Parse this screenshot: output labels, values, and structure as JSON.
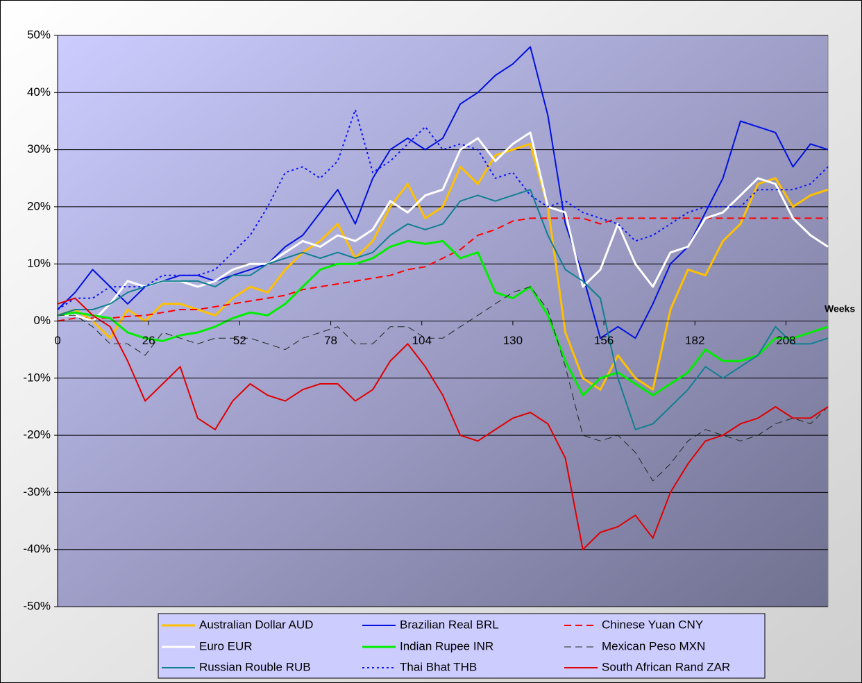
{
  "chart_data": {
    "type": "line",
    "x_label": "Weeks",
    "x": [
      0,
      5,
      10,
      15,
      20,
      25,
      30,
      35,
      40,
      45,
      50,
      55,
      60,
      65,
      70,
      75,
      80,
      85,
      90,
      95,
      100,
      105,
      110,
      115,
      120,
      125,
      130,
      135,
      140,
      145,
      150,
      155,
      160,
      165,
      170,
      175,
      180,
      185,
      190,
      195,
      200,
      205,
      210,
      215,
      220
    ],
    "xlim": [
      0,
      220
    ],
    "xticks": [
      0,
      26,
      52,
      78,
      104,
      130,
      156,
      182,
      208
    ],
    "ylim": [
      -50,
      50
    ],
    "yticks": [
      {
        "value": -50,
        "label": "-50%"
      },
      {
        "value": -40,
        "label": "-40%"
      },
      {
        "value": -30,
        "label": "-30%"
      },
      {
        "value": -20,
        "label": "-20%"
      },
      {
        "value": -10,
        "label": "-10%"
      },
      {
        "value": 0,
        "label": "0%"
      },
      {
        "value": 10,
        "label": "10%"
      },
      {
        "value": 20,
        "label": "20%"
      },
      {
        "value": 30,
        "label": "30%"
      },
      {
        "value": 40,
        "label": "40%"
      },
      {
        "value": 50,
        "label": "50%"
      }
    ],
    "grid": true,
    "legend": "bottom",
    "series": [
      {
        "name": "Australian Dollar AUD",
        "color": "#ffc000",
        "dash": "solid",
        "width": 3,
        "values": [
          1,
          2,
          0,
          -3,
          2,
          0,
          3,
          3,
          2,
          1,
          4,
          6,
          5,
          9,
          12,
          14,
          17,
          11,
          14,
          20,
          24,
          18,
          20,
          27,
          24,
          29,
          30,
          31,
          20,
          -2,
          -10,
          -12,
          -6,
          -10,
          -12,
          2,
          9,
          8,
          14,
          17,
          24,
          25,
          20,
          22,
          23
        ]
      },
      {
        "name": "Brazilian Real BRL",
        "color": "#0010e0",
        "dash": "solid",
        "width": 2,
        "values": [
          2,
          5,
          9,
          6,
          3,
          6,
          7,
          8,
          8,
          7,
          8,
          9,
          10,
          13,
          15,
          19,
          23,
          17,
          25,
          30,
          32,
          30,
          32,
          38,
          40,
          43,
          45,
          48,
          36,
          17,
          8,
          -3,
          -1,
          -3,
          3,
          10,
          13,
          19,
          25,
          35,
          34,
          33,
          27,
          31,
          30
        ]
      },
      {
        "name": "Chinese Yuan CNY",
        "color": "#ff0000",
        "dash": "dash",
        "width": 2,
        "values": [
          0,
          0.5,
          0.5,
          0.5,
          0.8,
          1,
          1.5,
          2,
          2,
          2.5,
          3,
          3.5,
          4,
          4.5,
          5.5,
          6,
          6.5,
          7,
          7.5,
          8,
          9,
          9.5,
          11,
          12.5,
          15,
          16,
          17.5,
          18,
          18,
          18,
          18,
          17,
          18,
          18,
          18,
          18,
          18,
          18,
          18,
          18,
          18,
          18,
          18,
          18,
          18
        ]
      },
      {
        "name": "Euro EUR",
        "color": "#ffffff",
        "dash": "solid",
        "width": 3,
        "values": [
          1,
          1,
          0,
          3,
          7,
          6,
          7,
          7,
          6,
          7,
          9,
          10,
          10,
          12,
          14,
          13,
          15,
          14,
          16,
          21,
          19,
          22,
          23,
          30,
          32,
          28,
          31,
          33,
          20,
          19,
          6,
          9,
          17,
          10,
          6,
          12,
          13,
          18,
          19,
          22,
          25,
          24,
          18,
          15,
          13
        ]
      },
      {
        "name": "Indian Rupee INR",
        "color": "#00ee00",
        "dash": "solid",
        "width": 3,
        "values": [
          1,
          1.5,
          1,
          0.5,
          -2,
          -3,
          -3.5,
          -2.5,
          -2,
          -1,
          0.5,
          1.5,
          1,
          3,
          6,
          9,
          10,
          10,
          11,
          13,
          14,
          13.5,
          14,
          11,
          12,
          5,
          4,
          6,
          1,
          -7,
          -13,
          -10,
          -9,
          -11,
          -13,
          -11,
          -9,
          -5,
          -7,
          -7,
          -6,
          -3,
          -3,
          -2,
          -1
        ]
      },
      {
        "name": "Mexican Peso MXN",
        "color": "#1a2a1a",
        "dash": "dash",
        "width": 1,
        "values": [
          1,
          1,
          -1,
          -4,
          -4,
          -6,
          -2,
          -3,
          -4,
          -3,
          -3,
          -3,
          -4,
          -5,
          -3,
          -2,
          -1,
          -4,
          -4,
          -1,
          -1,
          -3,
          -3,
          -1,
          1,
          3,
          5,
          6,
          2,
          -8,
          -20,
          -21,
          -20,
          -23,
          -28,
          -25,
          -21,
          -19,
          -20,
          -21,
          -20,
          -18,
          -17,
          -18,
          -15
        ]
      },
      {
        "name": "Russian Rouble RUB",
        "color": "#107f90",
        "dash": "solid",
        "width": 2,
        "values": [
          1,
          2,
          2,
          3,
          5,
          6,
          7,
          7,
          7,
          6,
          8,
          8,
          10,
          11,
          12,
          11,
          12,
          11,
          12,
          15,
          17,
          16,
          17,
          21,
          22,
          21,
          22,
          23,
          15,
          9,
          7,
          4,
          -10,
          -19,
          -18,
          -15,
          -12,
          -8,
          -10,
          -8,
          -6,
          -1,
          -4,
          -4,
          -3
        ]
      },
      {
        "name": "Thai Bhat THB",
        "color": "#0a14ff",
        "dash": "dot",
        "width": 2,
        "values": [
          2,
          4,
          4,
          6,
          6,
          6,
          8,
          8,
          8,
          9,
          12,
          15,
          20,
          26,
          27,
          25,
          28,
          37,
          26,
          28,
          31,
          34,
          30,
          31,
          30,
          25,
          26,
          22,
          20,
          21,
          19,
          18,
          17,
          14,
          15,
          17,
          19,
          20,
          20,
          20,
          23,
          23,
          23,
          24,
          27
        ]
      },
      {
        "name": "South African Rand ZAR",
        "color": "#e00000",
        "dash": "solid",
        "width": 2,
        "values": [
          3,
          4,
          1,
          -1,
          -7,
          -14,
          -11,
          -8,
          -17,
          -19,
          -14,
          -11,
          -13,
          -14,
          -12,
          -11,
          -11,
          -14,
          -12,
          -7,
          -4,
          -8,
          -13,
          -20,
          -21,
          -19,
          -17,
          -16,
          -18,
          -24,
          -40,
          -37,
          -36,
          -34,
          -38,
          -30,
          -25,
          -21,
          -20,
          -18,
          -17,
          -15,
          -17,
          -17,
          -15
        ]
      }
    ]
  }
}
